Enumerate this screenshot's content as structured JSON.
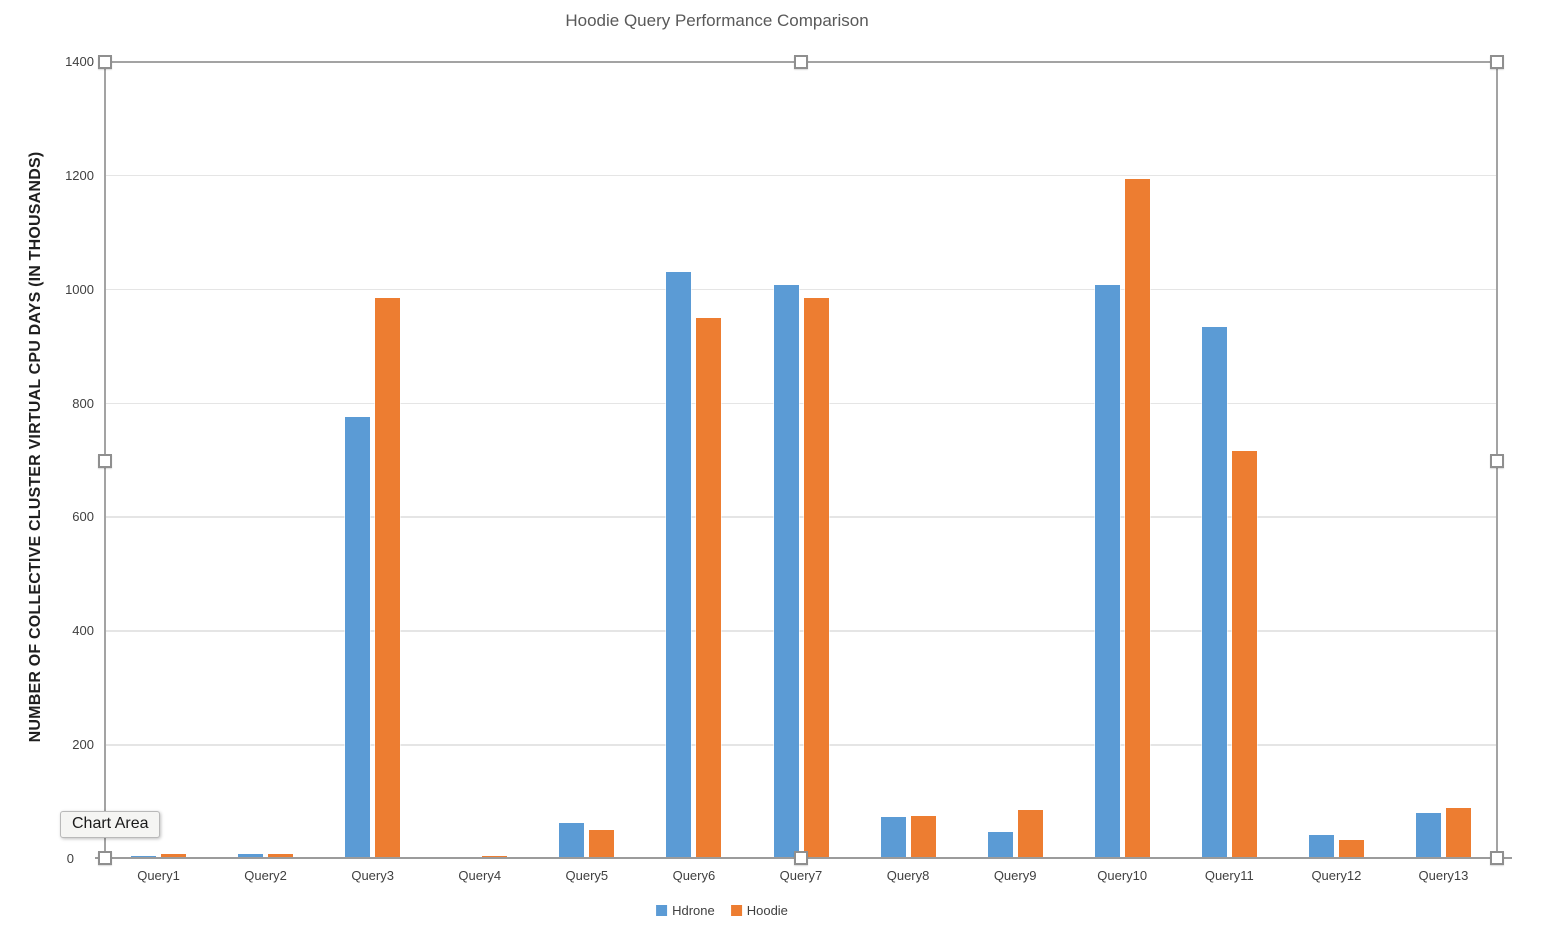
{
  "tooltip": {
    "label": "Chart Area"
  },
  "chart_data": {
    "type": "bar",
    "title": "Hoodie Query Performance Comparison",
    "ylabel": "NUMBER OF COLLECTIVE CLUSTER VIRTUAL CPU DAYS (IN THOUSANDS)",
    "categories": [
      "Query1",
      "Query2",
      "Query3",
      "Query4",
      "Query5",
      "Query6",
      "Query7",
      "Query8",
      "Query9",
      "Query10",
      "Query11",
      "Query12",
      "Query13"
    ],
    "series": [
      {
        "name": "Hdrone",
        "color": "#5B9BD5",
        "values": [
          5,
          9,
          777,
          4,
          63,
          1032,
          1008,
          74,
          48,
          1008,
          935,
          42,
          81
        ]
      },
      {
        "name": "Hoodie",
        "color": "#ED7D31",
        "values": [
          9,
          8,
          985,
          5,
          51,
          951,
          985,
          75,
          86,
          1194,
          717,
          33,
          90
        ]
      }
    ],
    "ylim": [
      0,
      1400
    ],
    "yticks": [
      0,
      200,
      400,
      600,
      800,
      1000,
      1200,
      1400
    ],
    "grid": "horizontal",
    "legend_position": "bottom"
  }
}
